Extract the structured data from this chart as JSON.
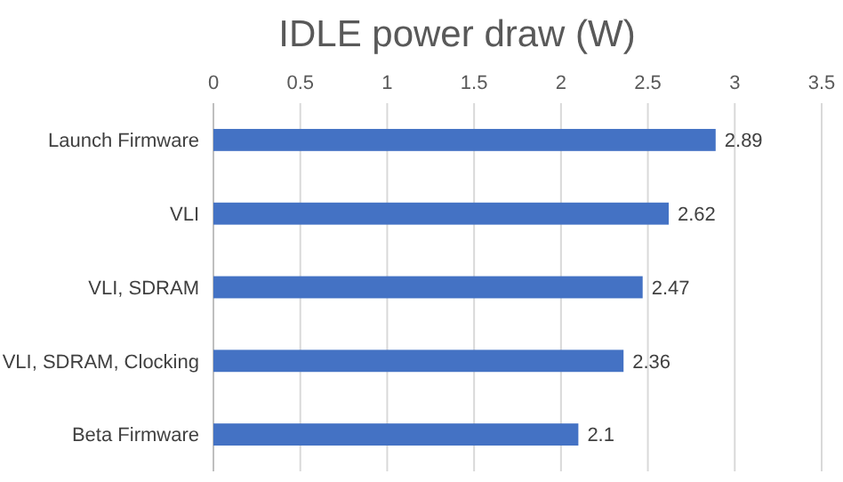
{
  "chart_data": {
    "type": "bar",
    "orientation": "horizontal",
    "title": "IDLE power draw (W)",
    "categories": [
      "Launch Firmware",
      "VLI",
      "VLI, SDRAM",
      "VLI, SDRAM, Clocking",
      "Beta Firmware"
    ],
    "values": [
      2.89,
      2.62,
      2.47,
      2.36,
      2.1
    ],
    "color": "#4472c4",
    "xlim": [
      0,
      3.5
    ],
    "xticks": [
      0,
      0.5,
      1,
      1.5,
      2,
      2.5,
      3,
      3.5
    ],
    "grid": "x",
    "data_labels": true
  }
}
